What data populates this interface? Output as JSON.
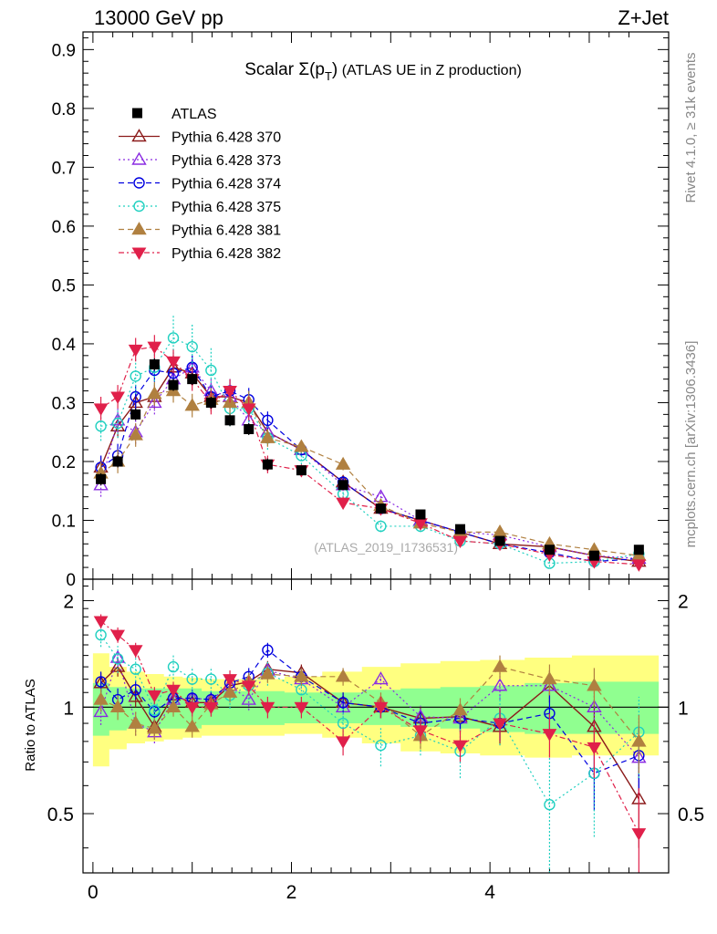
{
  "header": {
    "left": "13000 GeV pp",
    "right": "Z+Jet"
  },
  "side_labels": {
    "rivet": "Rivet 4.1.0, ≥ 31k events",
    "mcplots": "mcplots.cern.ch [arXiv:1306.3436]"
  },
  "title": {
    "main": "Scalar Σ(p",
    "sub": "T",
    "close": ")",
    "extra": " (ATLAS UE in Z production)"
  },
  "watermark": "(ATLAS_2019_I1736531)",
  "ratio_ylabel": "Ratio to ATLAS",
  "colors": {
    "ATLAS": "#000000",
    "s370": "#8b1a1a",
    "s373": "#8a2be2",
    "s374": "#0000e0",
    "s375": "#20d0c0",
    "s381": "#b08040",
    "s382": "#e0204a",
    "band_inner": "#90ff90",
    "band_outer": "#ffff80"
  },
  "chart_data": {
    "type": "scatter",
    "title": "Scalar Σ(pT) (ATLAS UE in Z production)",
    "xlabel": "",
    "ylabel_ratio": "Ratio to ATLAS",
    "xlim": [
      -0.1,
      5.8
    ],
    "ylim_main": [
      0,
      0.93
    ],
    "ylim_ratio": [
      0.34,
      2.3
    ],
    "x_ticks": [
      0,
      2,
      4
    ],
    "x_tick_labels": [
      "0",
      "2",
      "4"
    ],
    "y_ticks_main": [
      0,
      0.1,
      0.2,
      0.3,
      0.4,
      0.5,
      0.6,
      0.7,
      0.8,
      0.9
    ],
    "y_tick_labels_main": [
      "0",
      "0.1",
      "0.2",
      "0.3",
      "0.4",
      "0.5",
      "0.6",
      "0.7",
      "0.8",
      "0.9"
    ],
    "y_ticks_ratio": [
      0.5,
      1,
      2
    ],
    "y_tick_labels_ratio": [
      "0.5",
      "1",
      "2"
    ],
    "x": [
      0.08,
      0.25,
      0.43,
      0.62,
      0.81,
      1.0,
      1.19,
      1.38,
      1.57,
      1.76,
      2.1,
      2.52,
      2.9,
      3.3,
      3.7,
      4.1,
      4.6,
      5.05,
      5.5
    ],
    "band": {
      "inner_lo": [
        0.83,
        0.86,
        0.87,
        0.87,
        0.87,
        0.87,
        0.89,
        0.89,
        0.89,
        0.89,
        0.9,
        0.9,
        0.89,
        0.88,
        0.87,
        0.85,
        0.84,
        0.84,
        0.84
      ],
      "inner_hi": [
        1.17,
        1.14,
        1.13,
        1.13,
        1.13,
        1.13,
        1.11,
        1.11,
        1.11,
        1.11,
        1.1,
        1.1,
        1.12,
        1.13,
        1.14,
        1.15,
        1.17,
        1.18,
        1.18
      ],
      "outer_lo": [
        0.68,
        0.76,
        0.79,
        0.8,
        0.81,
        0.82,
        0.83,
        0.83,
        0.83,
        0.83,
        0.84,
        0.82,
        0.79,
        0.75,
        0.74,
        0.73,
        0.72,
        0.73,
        0.73
      ],
      "outer_hi": [
        1.42,
        1.3,
        1.26,
        1.24,
        1.22,
        1.21,
        1.2,
        1.2,
        1.2,
        1.2,
        1.22,
        1.26,
        1.3,
        1.33,
        1.35,
        1.36,
        1.38,
        1.4,
        1.4
      ]
    },
    "series": [
      {
        "name": "ATLAS",
        "key": "ATLAS",
        "marker": "square",
        "line": "none",
        "values": [
          0.17,
          0.2,
          0.28,
          0.365,
          0.33,
          0.34,
          0.3,
          0.27,
          0.255,
          0.195,
          0.185,
          0.16,
          0.12,
          0.11,
          0.085,
          0.065,
          0.05,
          0.04,
          0.05
        ],
        "errors": [
          0.01,
          0.01,
          0.01,
          0.01,
          0.01,
          0.01,
          0.01,
          0.01,
          0.01,
          0.01,
          0.008,
          0.008,
          0.007,
          0.007,
          0.006,
          0.005,
          0.004,
          0.004,
          0.004
        ]
      },
      {
        "name": "Pythia 6.428 370",
        "key": "s370",
        "marker": "triangle-open",
        "line": "solid",
        "values": [
          0.19,
          0.26,
          0.3,
          0.31,
          0.36,
          0.35,
          0.31,
          0.31,
          0.3,
          0.25,
          0.22,
          0.165,
          0.12,
          0.1,
          0.08,
          0.06,
          0.055,
          0.04,
          0.03
        ],
        "errors": [
          0.02,
          0.02,
          0.02,
          0.02,
          0.02,
          0.02,
          0.02,
          0.02,
          0.02,
          0.015,
          0.01,
          0.01,
          0.008,
          0.008,
          0.007,
          0.006,
          0.006,
          0.005,
          0.005
        ]
      },
      {
        "name": "Pythia 6.428 373",
        "key": "s373",
        "marker": "triangle-open",
        "line": "dotted",
        "values": [
          0.16,
          0.27,
          0.25,
          0.3,
          0.34,
          0.36,
          0.32,
          0.31,
          0.27,
          0.25,
          0.22,
          0.16,
          0.14,
          0.1,
          0.08,
          0.075,
          0.055,
          0.04,
          0.035
        ],
        "errors": [
          0.02,
          0.02,
          0.02,
          0.02,
          0.02,
          0.02,
          0.02,
          0.02,
          0.02,
          0.015,
          0.01,
          0.01,
          0.008,
          0.008,
          0.007,
          0.006,
          0.006,
          0.005,
          0.005
        ]
      },
      {
        "name": "Pythia 6.428 374",
        "key": "s374",
        "marker": "circle-open",
        "line": "dashed",
        "values": [
          0.19,
          0.21,
          0.31,
          0.355,
          0.35,
          0.36,
          0.31,
          0.32,
          0.305,
          0.27,
          0.22,
          0.165,
          0.12,
          0.1,
          0.08,
          0.06,
          0.045,
          0.03,
          0.035
        ],
        "errors": [
          0.02,
          0.02,
          0.02,
          0.02,
          0.02,
          0.02,
          0.02,
          0.02,
          0.02,
          0.015,
          0.01,
          0.01,
          0.008,
          0.008,
          0.007,
          0.006,
          0.006,
          0.005,
          0.005
        ]
      },
      {
        "name": "Pythia 6.428 375",
        "key": "s375",
        "marker": "circle-open",
        "line": "dotted",
        "values": [
          0.26,
          0.265,
          0.345,
          0.36,
          0.41,
          0.395,
          0.355,
          0.29,
          0.29,
          0.24,
          0.21,
          0.145,
          0.09,
          0.09,
          0.065,
          0.06,
          0.027,
          0.03,
          0.043
        ],
        "errors": [
          0.025,
          0.025,
          0.03,
          0.03,
          0.04,
          0.04,
          0.04,
          0.03,
          0.03,
          0.02,
          0.015,
          0.012,
          0.01,
          0.01,
          0.008,
          0.008,
          0.006,
          0.006,
          0.006
        ]
      },
      {
        "name": "Pythia 6.428 381",
        "key": "s381",
        "marker": "triangle-filled",
        "line": "dashed",
        "values": [
          0.18,
          0.2,
          0.245,
          0.315,
          0.32,
          0.295,
          0.305,
          0.3,
          0.3,
          0.24,
          0.225,
          0.195,
          0.125,
          0.095,
          0.08,
          0.08,
          0.06,
          0.05,
          0.04
        ],
        "errors": [
          0.02,
          0.02,
          0.02,
          0.02,
          0.02,
          0.02,
          0.02,
          0.02,
          0.02,
          0.015,
          0.01,
          0.01,
          0.008,
          0.008,
          0.007,
          0.006,
          0.006,
          0.005,
          0.005
        ]
      },
      {
        "name": "Pythia 6.428 382",
        "key": "s382",
        "marker": "triangle-down-filled",
        "line": "dashdot",
        "values": [
          0.29,
          0.31,
          0.39,
          0.395,
          0.37,
          0.34,
          0.3,
          0.32,
          0.29,
          0.195,
          0.185,
          0.13,
          0.12,
          0.095,
          0.065,
          0.06,
          0.042,
          0.03,
          0.025
        ],
        "errors": [
          0.02,
          0.02,
          0.02,
          0.02,
          0.02,
          0.02,
          0.02,
          0.02,
          0.02,
          0.015,
          0.01,
          0.01,
          0.008,
          0.008,
          0.007,
          0.006,
          0.006,
          0.005,
          0.005
        ]
      }
    ],
    "ratio_series": [
      {
        "key": "s370",
        "values": [
          1.17,
          1.3,
          1.07,
          0.88,
          1.08,
          1.03,
          1.03,
          1.15,
          1.18,
          1.28,
          1.25,
          1.03,
          1.0,
          0.93,
          0.94,
          0.88,
          1.15,
          0.88,
          0.55
        ],
        "errors": [
          0.08,
          0.08,
          0.07,
          0.06,
          0.06,
          0.06,
          0.06,
          0.07,
          0.07,
          0.07,
          0.07,
          0.07,
          0.07,
          0.07,
          0.08,
          0.1,
          0.12,
          0.14,
          0.15
        ]
      },
      {
        "key": "s373",
        "values": [
          0.97,
          1.38,
          0.9,
          0.85,
          1.05,
          1.06,
          1.05,
          1.15,
          1.05,
          1.27,
          1.2,
          1.0,
          1.2,
          0.94,
          0.93,
          1.15,
          1.15,
          1.0,
          0.72
        ],
        "errors": [
          0.08,
          0.08,
          0.07,
          0.06,
          0.06,
          0.06,
          0.06,
          0.07,
          0.07,
          0.07,
          0.07,
          0.07,
          0.07,
          0.07,
          0.08,
          0.1,
          0.12,
          0.14,
          0.15
        ]
      },
      {
        "key": "s374",
        "values": [
          1.18,
          1.05,
          1.12,
          0.97,
          1.06,
          1.06,
          1.05,
          1.17,
          1.22,
          1.45,
          1.22,
          1.03,
          1.0,
          0.9,
          0.93,
          0.9,
          0.96,
          0.65,
          0.73
        ],
        "errors": [
          0.08,
          0.08,
          0.07,
          0.06,
          0.06,
          0.06,
          0.06,
          0.07,
          0.07,
          0.07,
          0.07,
          0.07,
          0.07,
          0.07,
          0.08,
          0.1,
          0.12,
          0.14,
          0.15
        ]
      },
      {
        "key": "s375",
        "values": [
          1.6,
          1.37,
          1.28,
          0.98,
          1.3,
          1.2,
          1.2,
          1.08,
          1.15,
          1.25,
          1.12,
          0.9,
          0.78,
          0.83,
          0.75,
          0.93,
          0.53,
          0.65,
          0.85
        ],
        "errors": [
          0.12,
          0.12,
          0.1,
          0.08,
          0.1,
          0.1,
          0.1,
          0.09,
          0.1,
          0.1,
          0.09,
          0.09,
          0.1,
          0.1,
          0.12,
          0.15,
          0.2,
          0.22,
          0.22
        ]
      },
      {
        "key": "s381",
        "values": [
          1.05,
          1.0,
          0.9,
          0.87,
          1.0,
          0.88,
          1.02,
          1.1,
          1.18,
          1.24,
          1.22,
          1.22,
          1.03,
          0.83,
          0.98,
          1.3,
          1.2,
          1.15,
          0.8
        ],
        "errors": [
          0.08,
          0.08,
          0.07,
          0.06,
          0.06,
          0.06,
          0.06,
          0.07,
          0.07,
          0.07,
          0.07,
          0.07,
          0.07,
          0.07,
          0.08,
          0.1,
          0.12,
          0.14,
          0.15
        ]
      },
      {
        "key": "s382",
        "values": [
          1.75,
          1.6,
          1.45,
          1.08,
          1.12,
          1.0,
          1.0,
          1.2,
          1.15,
          1.0,
          1.0,
          0.8,
          1.0,
          0.86,
          0.78,
          0.9,
          0.84,
          0.77,
          0.44
        ],
        "errors": [
          0.08,
          0.08,
          0.07,
          0.06,
          0.06,
          0.06,
          0.06,
          0.07,
          0.07,
          0.07,
          0.07,
          0.07,
          0.07,
          0.07,
          0.08,
          0.1,
          0.12,
          0.14,
          0.15
        ]
      }
    ]
  }
}
